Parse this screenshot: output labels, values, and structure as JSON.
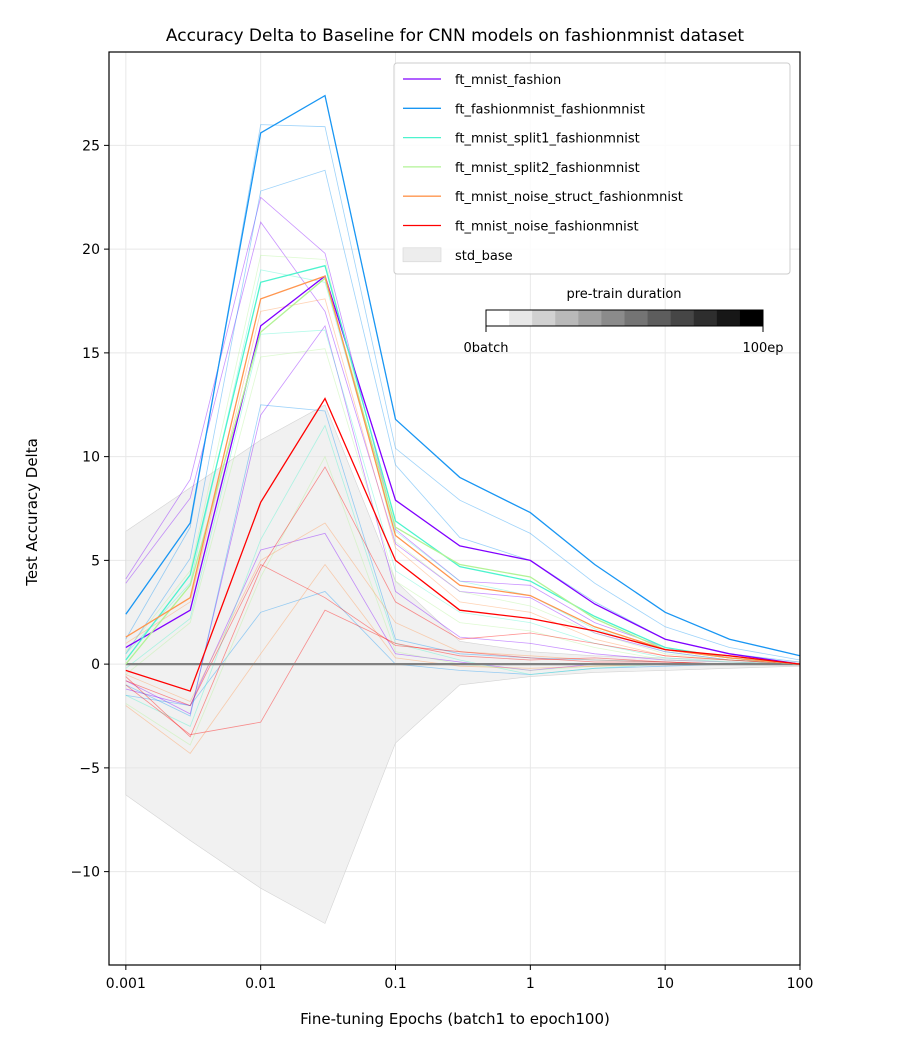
{
  "chart_data": {
    "type": "line",
    "title": "Accuracy Delta to Baseline for CNN models on fashionmnist dataset",
    "xlabel": "Fine-tuning Epochs (batch1 to epoch100)",
    "ylabel": "Test Accuracy Delta",
    "x_scale": "log",
    "x": [
      0.001,
      0.003,
      0.01,
      0.03,
      0.1,
      0.3,
      1,
      3,
      10,
      30,
      100
    ],
    "xlim": [
      0.00075,
      100
    ],
    "ylim": [
      -14.5,
      29.5
    ],
    "x_ticks": [
      0.001,
      0.01,
      0.1,
      1,
      10,
      100
    ],
    "x_tick_labels": [
      "0.001",
      "0.01",
      "0.1",
      "1",
      "10",
      "100"
    ],
    "y_ticks": [
      -10,
      -5,
      0,
      5,
      10,
      15,
      20,
      25
    ],
    "y_tick_labels": [
      "−10",
      "−5",
      "0",
      "5",
      "10",
      "15",
      "20",
      "25"
    ],
    "grid": true,
    "legend_position": "top-right",
    "series": [
      {
        "name": "ft_mnist_fashion",
        "color": "#8000ff",
        "values": [
          0.8,
          2.6,
          16.3,
          18.7,
          7.9,
          5.7,
          5.0,
          2.9,
          1.2,
          0.5,
          0.0
        ]
      },
      {
        "name": "ft_fashionmnist_fashionmnist",
        "color": "#1996f3",
        "values": [
          2.4,
          6.8,
          25.6,
          27.4,
          11.8,
          9.0,
          7.3,
          4.8,
          2.5,
          1.2,
          0.4
        ]
      },
      {
        "name": "ft_mnist_split1_fashionmnist",
        "color": "#4df3ce",
        "values": [
          0.2,
          4.3,
          18.4,
          19.2,
          6.9,
          4.7,
          4.0,
          2.3,
          0.8,
          0.3,
          0.0
        ]
      },
      {
        "name": "ft_mnist_split2_fashionmnist",
        "color": "#b2f396",
        "values": [
          0.0,
          3.8,
          16.0,
          18.6,
          6.6,
          4.8,
          4.2,
          2.2,
          0.7,
          0.3,
          0.0
        ]
      },
      {
        "name": "ft_mnist_noise_struct_fashionmnist",
        "color": "#ff964f",
        "values": [
          1.3,
          3.2,
          17.6,
          18.7,
          6.2,
          3.8,
          3.3,
          1.8,
          0.7,
          0.3,
          0.0
        ]
      },
      {
        "name": "ft_mnist_noise_fashionmnist",
        "color": "#ff0000",
        "values": [
          -0.3,
          -1.3,
          7.8,
          12.8,
          5.0,
          2.6,
          2.2,
          1.6,
          0.7,
          0.4,
          0.0
        ]
      }
    ],
    "std_band": {
      "name": "std_base",
      "color": "#e6e6e6",
      "upper": [
        6.4,
        8.5,
        10.8,
        12.5,
        4.0,
        1.1,
        0.6,
        0.4,
        0.3,
        0.2,
        0.1
      ],
      "lower": [
        -6.3,
        -8.5,
        -10.8,
        -12.5,
        -3.8,
        -1.0,
        -0.6,
        -0.4,
        -0.3,
        -0.2,
        -0.1
      ]
    },
    "baseline": {
      "color": "#808080",
      "values": [
        0,
        0,
        0,
        0,
        0,
        0,
        0,
        0,
        0,
        0,
        0
      ]
    },
    "faint_runs": [
      {
        "color": "#8000ff",
        "values": [
          4.1,
          8.9,
          22.5,
          19.8,
          6.5,
          4.0,
          3.8,
          2.0,
          0.8,
          0.3,
          0.0
        ]
      },
      {
        "color": "#8000ff",
        "values": [
          3.9,
          8.0,
          21.3,
          17.0,
          5.8,
          3.5,
          3.2,
          1.5,
          0.6,
          0.2,
          0.0
        ]
      },
      {
        "color": "#8000ff",
        "values": [
          -0.8,
          -2.4,
          12.0,
          16.3,
          3.5,
          1.3,
          1.0,
          0.5,
          0.2,
          0.1,
          0.0
        ]
      },
      {
        "color": "#8000ff",
        "values": [
          -1.2,
          -2.0,
          5.5,
          6.3,
          0.5,
          0.1,
          -0.3,
          0.0,
          0.0,
          0.0,
          0.0
        ]
      },
      {
        "color": "#1996f3",
        "values": [
          1.2,
          6.6,
          26.0,
          25.9,
          10.4,
          7.9,
          6.3,
          3.9,
          1.8,
          0.8,
          0.2
        ]
      },
      {
        "color": "#1996f3",
        "values": [
          0.5,
          5.1,
          22.8,
          23.8,
          9.6,
          6.1,
          5.0,
          3.0,
          1.2,
          0.5,
          0.1
        ]
      },
      {
        "color": "#1996f3",
        "values": [
          -1.0,
          -2.5,
          12.5,
          12.2,
          1.2,
          0.5,
          0.3,
          0.2,
          0.1,
          0.0,
          0.0
        ]
      },
      {
        "color": "#1996f3",
        "values": [
          -1.5,
          -2.0,
          2.5,
          3.5,
          0.0,
          -0.3,
          -0.5,
          -0.2,
          -0.1,
          0.0,
          0.0
        ]
      },
      {
        "color": "#4df3ce",
        "values": [
          0.5,
          3.9,
          19.0,
          18.4,
          6.4,
          4.0,
          3.3,
          1.7,
          0.6,
          0.2,
          0.0
        ]
      },
      {
        "color": "#4df3ce",
        "values": [
          -0.2,
          2.2,
          15.9,
          16.1,
          4.5,
          2.5,
          2.0,
          1.0,
          0.3,
          0.1,
          0.0
        ]
      },
      {
        "color": "#4df3ce",
        "values": [
          -1.5,
          -3.0,
          6.0,
          11.5,
          1.0,
          0.2,
          -0.5,
          -0.2,
          0.0,
          0.0,
          0.0
        ]
      },
      {
        "color": "#b2f396",
        "values": [
          0.6,
          4.5,
          19.7,
          19.5,
          5.9,
          3.5,
          2.8,
          1.5,
          0.5,
          0.2,
          0.0
        ]
      },
      {
        "color": "#b2f396",
        "values": [
          -0.5,
          2.0,
          14.8,
          15.2,
          4.0,
          2.0,
          1.6,
          0.8,
          0.2,
          0.1,
          0.0
        ]
      },
      {
        "color": "#b2f396",
        "values": [
          -1.9,
          -3.9,
          4.2,
          10.0,
          0.6,
          0.0,
          -0.3,
          -0.1,
          0.0,
          0.0,
          0.0
        ]
      },
      {
        "color": "#ff964f",
        "values": [
          1.0,
          3.0,
          17.0,
          17.6,
          5.6,
          3.0,
          2.5,
          1.2,
          0.4,
          0.2,
          0.0
        ]
      },
      {
        "color": "#ff964f",
        "values": [
          -0.5,
          -1.8,
          5.0,
          6.8,
          2.0,
          0.6,
          0.4,
          0.2,
          0.1,
          0.0,
          0.0
        ]
      },
      {
        "color": "#ff964f",
        "values": [
          -2.0,
          -4.3,
          0.5,
          4.8,
          0.3,
          -0.1,
          -0.2,
          -0.1,
          0.0,
          0.0,
          0.0
        ]
      },
      {
        "color": "#ff0000",
        "values": [
          -0.6,
          -3.5,
          4.6,
          9.5,
          3.0,
          1.2,
          1.5,
          1.0,
          0.4,
          0.2,
          0.0
        ]
      },
      {
        "color": "#ff0000",
        "values": [
          -1.0,
          -3.4,
          -2.8,
          2.6,
          1.0,
          0.4,
          0.2,
          0.3,
          0.1,
          0.0,
          0.0
        ]
      },
      {
        "color": "#ff0000",
        "values": [
          -0.8,
          -2.0,
          4.8,
          3.2,
          0.9,
          0.6,
          0.3,
          0.1,
          0.1,
          0.0,
          0.0
        ]
      }
    ],
    "colorbar": {
      "label": "pre-train duration",
      "min_label": "0batch",
      "max_label": "100ep",
      "steps": 12
    }
  }
}
